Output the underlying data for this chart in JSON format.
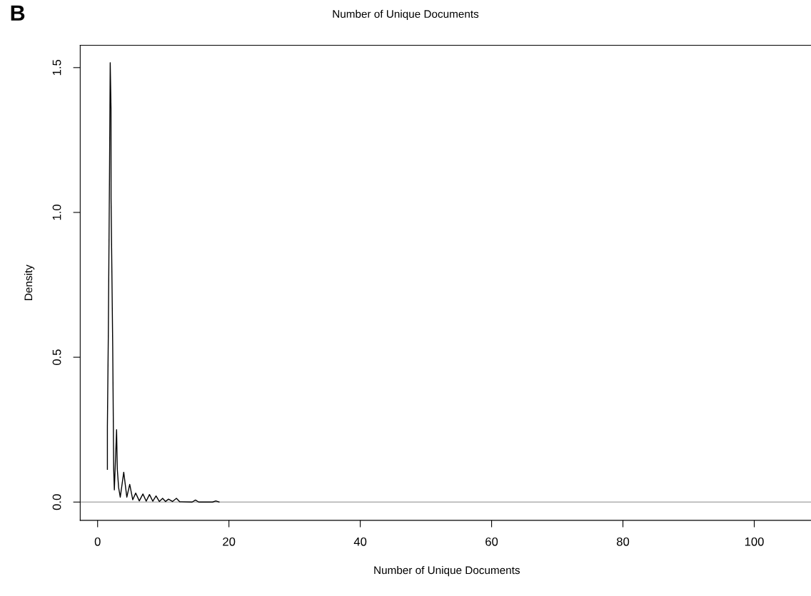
{
  "chart_data": {
    "type": "line",
    "title": "Number of Unique Documents",
    "xlabel": "Number of Unique Documents",
    "ylabel": "Density",
    "annotations": [
      "B"
    ],
    "x": [
      1.49,
      1.49,
      1.63,
      1.81,
      1.92,
      2.04,
      2.05,
      2.3,
      2.45,
      2.55,
      2.89,
      3.0,
      3.2,
      3.45,
      3.98,
      4.45,
      4.89,
      5.35,
      5.8,
      6.35,
      6.9,
      7.4,
      7.9,
      8.4,
      8.9,
      9.4,
      9.9,
      10.35,
      10.8,
      11.4,
      12.0,
      12.5,
      14.4,
      14.9,
      15.4,
      17.5,
      18.0,
      18.5
    ],
    "series": [
      {
        "color": "#000000",
        "values": [
          0.113,
          0.26,
          0.574,
          1.124,
          1.517,
          1.36,
          1.047,
          0.537,
          0.113,
          0.042,
          0.25,
          0.113,
          0.05,
          0.017,
          0.103,
          0.017,
          0.061,
          0.008,
          0.031,
          0.004,
          0.028,
          0.003,
          0.026,
          0.003,
          0.021,
          0.002,
          0.013,
          0.002,
          0.01,
          0.002,
          0.013,
          0.001,
          0,
          0.007,
          0,
          0,
          0.004,
          0
        ]
      }
    ],
    "xlim": [
      -2.65,
      109
    ],
    "ylim": [
      -0.063,
      1.577
    ],
    "xticks": [
      0,
      20,
      40,
      60,
      80,
      100
    ],
    "yticks": [
      {
        "value": 0,
        "label": "0.0"
      },
      {
        "value": 0.5,
        "label": "0.5"
      },
      {
        "value": 1.0,
        "label": "1.0"
      },
      {
        "value": 1.5,
        "label": "1.5"
      }
    ],
    "ref_lines": [
      {
        "axis": "y",
        "value": 0,
        "color": "#b0b0b0"
      }
    ],
    "grid": false,
    "legend": false
  }
}
